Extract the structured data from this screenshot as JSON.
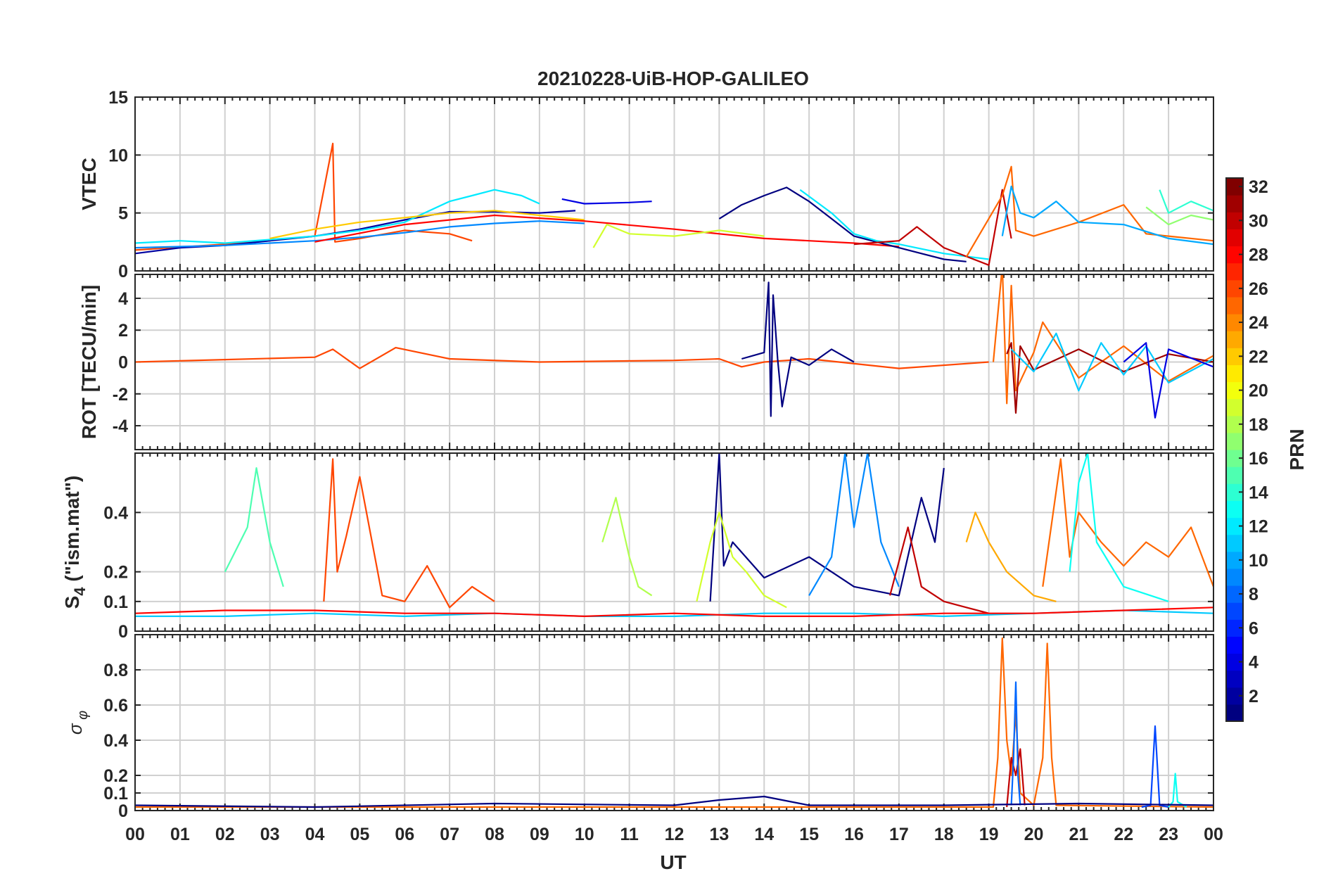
{
  "title": "20210228-UiB-HOP-GALILEO",
  "chart_data": {
    "type": "line",
    "title": "20210228-UiB-HOP-GALILEO",
    "xlabel": "UT",
    "x_tick_labels": [
      "00",
      "01",
      "02",
      "03",
      "04",
      "05",
      "06",
      "07",
      "08",
      "09",
      "10",
      "11",
      "12",
      "13",
      "14",
      "15",
      "16",
      "17",
      "18",
      "19",
      "20",
      "21",
      "22",
      "23",
      "00"
    ],
    "xlim": [
      0,
      24
    ],
    "grid": true,
    "colorbar": {
      "label": "PRN",
      "range": [
        1,
        32
      ],
      "ticks": [
        "2",
        "4",
        "6",
        "8",
        "10",
        "12",
        "14",
        "16",
        "18",
        "20",
        "22",
        "24",
        "26",
        "28",
        "30",
        "32"
      ],
      "colormap": "jet"
    },
    "panels": [
      {
        "id": "vtec",
        "ylabel": "VTEC",
        "ylim": [
          0,
          15
        ],
        "yticks": [
          0,
          5,
          10,
          15
        ],
        "ytick_labels": [
          "0",
          "5",
          "10",
          "15"
        ],
        "series": [
          {
            "prn": 26,
            "x": [
              0,
              2,
              4,
              4.4,
              4.45,
              5,
              6,
              7,
              7.5
            ],
            "y": [
              1.8,
              2.3,
              3.0,
              11.0,
              2.5,
              2.8,
              3.5,
              3.2,
              2.6
            ]
          },
          {
            "prn": 2,
            "x": [
              0,
              1,
              2,
              3,
              4,
              5,
              6,
              7,
              8,
              9,
              9.8
            ],
            "y": [
              1.5,
              2.0,
              2.2,
              2.6,
              3.0,
              3.6,
              4.4,
              5.1,
              5.1,
              5.0,
              5.2
            ]
          },
          {
            "prn": 12,
            "x": [
              0,
              1,
              2,
              3,
              4,
              5,
              6,
              7,
              7.5,
              8,
              8.6,
              9
            ],
            "y": [
              2.4,
              2.6,
              2.4,
              2.7,
              3.0,
              3.5,
              4.2,
              6.0,
              6.5,
              7.0,
              6.5,
              5.8
            ]
          },
          {
            "prn": 22,
            "x": [
              3,
              4,
              5,
              6,
              7,
              8,
              9,
              10
            ],
            "y": [
              2.8,
              3.6,
              4.2,
              4.6,
              5.0,
              5.2,
              4.8,
              4.4
            ]
          },
          {
            "prn": 9,
            "x": [
              0,
              2,
              4,
              5,
              6,
              7,
              8,
              9,
              10
            ],
            "y": [
              2.0,
              2.2,
              2.6,
              2.9,
              3.3,
              3.8,
              4.1,
              4.3,
              4.1
            ]
          },
          {
            "prn": 28,
            "x": [
              4,
              6,
              8,
              10,
              12,
              13,
              14,
              15,
              16,
              17
            ],
            "y": [
              2.5,
              4.0,
              4.8,
              4.3,
              3.6,
              3.2,
              2.8,
              2.6,
              2.4,
              2.1
            ]
          },
          {
            "prn": 4,
            "x": [
              9.5,
              10,
              11,
              11.5
            ],
            "y": [
              6.2,
              5.8,
              5.9,
              6.0
            ]
          },
          {
            "prn": 19,
            "x": [
              10.2,
              10.5,
              11,
              12,
              13,
              14
            ],
            "y": [
              2.0,
              4.0,
              3.2,
              3.0,
              3.5,
              3.0
            ]
          },
          {
            "prn": 1,
            "x": [
              13,
              13.5,
              14,
              14.5,
              15,
              15.5,
              16,
              17,
              17.5,
              18,
              18.5
            ],
            "y": [
              4.5,
              5.7,
              6.5,
              7.2,
              6.0,
              4.5,
              3.0,
              2.0,
              1.5,
              1.0,
              0.8
            ]
          },
          {
            "prn": 12,
            "x": [
              14.8,
              15.5,
              16,
              16.5,
              17,
              18,
              19
            ],
            "y": [
              7.0,
              5.0,
              3.2,
              2.6,
              2.3,
              1.5,
              1.0
            ]
          },
          {
            "prn": 30,
            "x": [
              16,
              17,
              17.4,
              18,
              19,
              19.3,
              19.5
            ],
            "y": [
              2.3,
              2.6,
              3.8,
              2.0,
              0.5,
              7.0,
              2.8
            ]
          },
          {
            "prn": 25,
            "x": [
              18.5,
              19.3,
              19.5,
              19.6,
              20,
              21,
              22,
              22.5,
              23,
              24
            ],
            "y": [
              1.2,
              6.5,
              9.0,
              3.5,
              3.0,
              4.2,
              5.7,
              3.2,
              3.0,
              2.6
            ]
          },
          {
            "prn": 10,
            "x": [
              19.3,
              19.5,
              19.7,
              20,
              20.5,
              21,
              22,
              23,
              24
            ],
            "y": [
              3.0,
              7.3,
              5.0,
              4.6,
              6.0,
              4.2,
              4.0,
              2.8,
              2.3
            ]
          },
          {
            "prn": 14,
            "x": [
              22.8,
              23,
              23.5,
              24
            ],
            "y": [
              7.0,
              5.0,
              6.0,
              5.2
            ]
          },
          {
            "prn": 17,
            "x": [
              22.5,
              23,
              23.5,
              24
            ],
            "y": [
              5.5,
              4.0,
              4.8,
              4.4
            ]
          }
        ]
      },
      {
        "id": "rot",
        "ylabel": "ROT [TECU/min]",
        "ylim": [
          -5.5,
          5.5
        ],
        "yticks": [
          -4,
          -2,
          0,
          2,
          4
        ],
        "ytick_labels": [
          "-4",
          "-2",
          "0",
          "2",
          "4"
        ],
        "series": [
          {
            "prn": 26,
            "x": [
              0,
              4,
              4.4,
              5,
              5.8,
              7,
              9,
              12,
              13,
              13.5,
              14,
              15,
              17,
              19
            ],
            "y": [
              0,
              0.3,
              0.8,
              -0.4,
              0.9,
              0.2,
              0,
              0.1,
              0.2,
              -0.3,
              0,
              0.2,
              -0.4,
              0
            ]
          },
          {
            "prn": 1,
            "x": [
              13.5,
              14,
              14.1,
              14.15,
              14.2,
              14.3,
              14.4,
              14.6,
              15,
              15.5,
              16
            ],
            "y": [
              0.2,
              0.6,
              5.0,
              -3.4,
              4.2,
              0.2,
              -2.8,
              0.3,
              -0.2,
              0.8,
              0
            ]
          },
          {
            "prn": 25,
            "x": [
              19.1,
              19.3,
              19.4,
              19.5,
              19.6,
              20.0,
              20.2,
              21,
              22,
              23,
              24
            ],
            "y": [
              0,
              6.0,
              -2.6,
              4.8,
              -1.8,
              0.6,
              2.5,
              -1.0,
              1.0,
              -1.2,
              0.4
            ]
          },
          {
            "prn": 31,
            "x": [
              19.4,
              19.5,
              19.6,
              19.7,
              20,
              21,
              22,
              23,
              24
            ],
            "y": [
              0.5,
              1.2,
              -3.2,
              1.0,
              -0.5,
              0.8,
              -0.6,
              0.5,
              0
            ]
          },
          {
            "prn": 11,
            "x": [
              19.5,
              20,
              20.5,
              21,
              21.5,
              22,
              22.5,
              23,
              24
            ],
            "y": [
              0.8,
              -0.6,
              1.8,
              -1.8,
              1.2,
              -0.8,
              1.0,
              -1.3,
              0.2
            ]
          },
          {
            "prn": 4,
            "x": [
              22,
              22.5,
              22.7,
              23,
              24
            ],
            "y": [
              0,
              1.2,
              -3.5,
              0.8,
              -0.3
            ]
          }
        ]
      },
      {
        "id": "s4",
        "ylabel_main": "S",
        "ylabel_sub": "4",
        "ylabel_rest": " (\"ism.mat\")",
        "ylim": [
          0,
          0.6
        ],
        "yticks": [
          0,
          0.1,
          0.2,
          0.4
        ],
        "ytick_labels": [
          "0",
          "0.1",
          "0.2",
          "0.4"
        ],
        "series": [
          {
            "prn": 15,
            "x": [
              2,
              2.5,
              2.7,
              3,
              3.3
            ],
            "y": [
              0.2,
              0.35,
              0.55,
              0.3,
              0.15
            ]
          },
          {
            "prn": 26,
            "x": [
              4.2,
              4.4,
              4.5,
              4.7,
              5,
              5.5,
              6,
              6.5,
              7,
              7.5,
              8
            ],
            "y": [
              0.1,
              0.58,
              0.2,
              0.32,
              0.52,
              0.12,
              0.1,
              0.22,
              0.08,
              0.15,
              0.1
            ]
          },
          {
            "prn": 18,
            "x": [
              10.4,
              10.7,
              11,
              11.2,
              11.5
            ],
            "y": [
              0.3,
              0.45,
              0.25,
              0.15,
              0.12
            ]
          },
          {
            "prn": 1,
            "x": [
              12.8,
              13,
              13.1,
              13.3,
              14,
              15,
              16,
              17,
              17.5,
              17.8,
              18
            ],
            "y": [
              0.1,
              0.6,
              0.22,
              0.3,
              0.18,
              0.25,
              0.15,
              0.12,
              0.45,
              0.3,
              0.55
            ]
          },
          {
            "prn": 19,
            "x": [
              12.5,
              12.8,
              13,
              13.3,
              13.6,
              14,
              14.5
            ],
            "y": [
              0.1,
              0.3,
              0.4,
              0.25,
              0.2,
              0.12,
              0.08
            ]
          },
          {
            "prn": 9,
            "x": [
              15,
              15.5,
              15.8,
              16,
              16.3,
              16.6,
              17
            ],
            "y": [
              0.12,
              0.25,
              0.6,
              0.35,
              0.6,
              0.3,
              0.15
            ]
          },
          {
            "prn": 30,
            "x": [
              16.8,
              17.2,
              17.5,
              18,
              18.5,
              19
            ],
            "y": [
              0.12,
              0.35,
              0.15,
              0.1,
              0.08,
              0.06
            ]
          },
          {
            "prn": 23,
            "x": [
              18.5,
              18.7,
              19,
              19.4,
              20,
              20.5
            ],
            "y": [
              0.3,
              0.4,
              0.3,
              0.2,
              0.12,
              0.1
            ]
          },
          {
            "prn": 25,
            "x": [
              20.2,
              20.6,
              20.8,
              21,
              21.5,
              22,
              22.5,
              23,
              23.5,
              24
            ],
            "y": [
              0.15,
              0.58,
              0.25,
              0.4,
              0.3,
              0.22,
              0.3,
              0.25,
              0.35,
              0.15
            ]
          },
          {
            "prn": 13,
            "x": [
              20.8,
              21,
              21.2,
              21.4,
              22,
              23
            ],
            "y": [
              0.2,
              0.5,
              0.6,
              0.3,
              0.15,
              0.1
            ]
          },
          {
            "prn": 11,
            "x": [
              0,
              2,
              4,
              6,
              8,
              10,
              12,
              14,
              16,
              18,
              20,
              22,
              24
            ],
            "y": [
              0.05,
              0.05,
              0.06,
              0.05,
              0.06,
              0.05,
              0.05,
              0.06,
              0.06,
              0.05,
              0.06,
              0.07,
              0.06
            ]
          },
          {
            "prn": 28,
            "x": [
              0,
              2,
              4,
              6,
              8,
              10,
              12,
              14,
              16,
              18,
              20,
              22,
              24
            ],
            "y": [
              0.06,
              0.07,
              0.07,
              0.06,
              0.06,
              0.05,
              0.06,
              0.05,
              0.05,
              0.06,
              0.06,
              0.07,
              0.08
            ]
          }
        ]
      },
      {
        "id": "sigma_phi",
        "ylabel": "σ φ",
        "ylim": [
          0,
          1
        ],
        "yticks": [
          0,
          0.1,
          0.2,
          0.4,
          0.6,
          0.8
        ],
        "ytick_labels": [
          "0",
          "0.1",
          "0.2",
          "0.4",
          "0.6",
          "0.8"
        ],
        "series": [
          {
            "prn": 25,
            "x": [
              0,
              6,
              12,
              19.1,
              19.2,
              19.3,
              19.4,
              19.5,
              19.6,
              19.7,
              20.0,
              20.2,
              20.3,
              20.4,
              20.5,
              24
            ],
            "y": [
              0.02,
              0.02,
              0.02,
              0.02,
              0.3,
              0.98,
              0.4,
              0.2,
              0.55,
              0.1,
              0.03,
              0.3,
              0.95,
              0.3,
              0.03,
              0.02
            ]
          },
          {
            "prn": 30,
            "x": [
              19.4,
              19.5,
              19.6,
              19.7,
              19.8
            ],
            "y": [
              0.02,
              0.3,
              0.2,
              0.35,
              0.03
            ]
          },
          {
            "prn": 8,
            "x": [
              19.5,
              19.55,
              19.6,
              19.65,
              19.7
            ],
            "y": [
              0.03,
              0.3,
              0.73,
              0.2,
              0.03
            ]
          },
          {
            "prn": 7,
            "x": [
              22.4,
              22.6,
              22.7,
              22.8,
              23
            ],
            "y": [
              0.02,
              0.03,
              0.48,
              0.03,
              0.02
            ]
          },
          {
            "prn": 13,
            "x": [
              23,
              23.1,
              23.15,
              23.2,
              23.4
            ],
            "y": [
              0.02,
              0.05,
              0.21,
              0.05,
              0.02
            ]
          },
          {
            "prn": 1,
            "x": [
              0,
              4,
              8,
              12,
              13,
              14,
              15,
              18,
              21,
              24
            ],
            "y": [
              0.03,
              0.02,
              0.04,
              0.03,
              0.06,
              0.08,
              0.03,
              0.03,
              0.04,
              0.03
            ]
          }
        ]
      }
    ]
  }
}
